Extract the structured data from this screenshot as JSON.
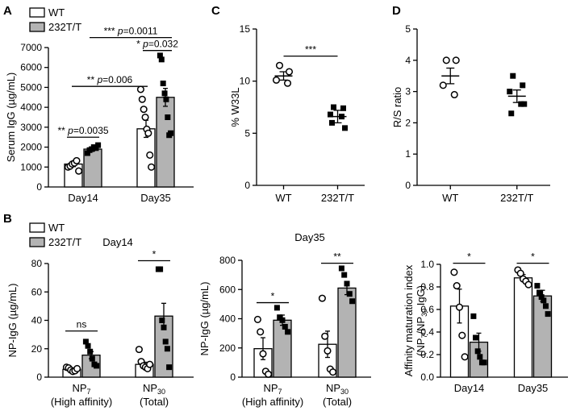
{
  "colors": {
    "wt_fill": "#ffffff",
    "mut_fill": "#b3b3b3",
    "ink": "#000000"
  },
  "panel_labels": {
    "A": "A",
    "B": "B",
    "C": "C",
    "D": "D"
  },
  "legend": {
    "wt": "WT",
    "mut": "232T/T"
  },
  "chart_data": [
    {
      "id": "A",
      "type": "bar",
      "title": "",
      "ylabel": "Serum IgG (µg/mL)",
      "ylim": [
        0,
        7000
      ],
      "yticks": [
        0,
        1000,
        2000,
        3000,
        4000,
        5000,
        6000,
        7000
      ],
      "categories": [
        "Day14",
        "Day35"
      ],
      "series": [
        {
          "name": "WT",
          "means": [
            1150,
            2920
          ],
          "sems": [
            130,
            430
          ],
          "points": [
            [
              1000,
              1050,
              1150,
              1200,
              1320,
              800
            ],
            [
              4900,
              4400,
              3900,
              3500,
              2900,
              2700,
              1600,
              1000
            ]
          ]
        },
        {
          "name": "232T/T",
          "means": [
            1900,
            4500
          ],
          "sems": [
            90,
            450
          ],
          "points": [
            [
              1700,
              1850,
              1900,
              2000,
              1950,
              2100
            ],
            [
              6600,
              6400,
              5200,
              4700,
              4400,
              3500,
              2600,
              2700
            ]
          ]
        }
      ],
      "annotations": [
        {
          "text": "** p=0.0035"
        },
        {
          "text": "** p=0.006"
        },
        {
          "text": "*** p=0.0011"
        },
        {
          "text": "* p=0.032"
        }
      ]
    },
    {
      "id": "C",
      "type": "scatter",
      "ylabel": "% W33L",
      "ylim": [
        0,
        15
      ],
      "yticks": [
        0,
        5,
        10,
        15
      ],
      "categories": [
        "WT",
        "232T/T"
      ],
      "series": [
        {
          "name": "WT",
          "mean": 10.5,
          "sem": 0.4,
          "points": [
            11.5,
            10.9,
            10.1,
            9.8
          ]
        },
        {
          "name": "232T/T",
          "mean": 6.6,
          "sem": 0.6,
          "points": [
            7.5,
            7.4,
            6.8,
            6.6,
            6.0,
            5.5
          ]
        }
      ],
      "annotations": [
        {
          "text": "***"
        }
      ]
    },
    {
      "id": "D",
      "type": "scatter",
      "ylabel": "R/S ratio",
      "ylim": [
        0,
        5
      ],
      "yticks": [
        0,
        1,
        2,
        3,
        4,
        5
      ],
      "categories": [
        "WT",
        "232T/T"
      ],
      "series": [
        {
          "name": "WT",
          "mean": 3.5,
          "sem": 0.25,
          "points": [
            4.0,
            4.0,
            3.2,
            2.9
          ]
        },
        {
          "name": "232T/T",
          "mean": 2.85,
          "sem": 0.2,
          "points": [
            3.5,
            3.2,
            3.0,
            2.6,
            2.3,
            2.6
          ]
        }
      ],
      "annotations": []
    },
    {
      "id": "B1",
      "type": "bar",
      "title": "Day14",
      "ylabel": "NP-IgG (µg/mL)",
      "ylim": [
        0,
        80
      ],
      "yticks": [
        0,
        20,
        40,
        60,
        80
      ],
      "categories": [
        {
          "line1": "NP",
          "sub": "7",
          "line2": "(High affinity)"
        },
        {
          "line1": "NP",
          "sub": "30",
          "line2": "(Total)"
        }
      ],
      "series": [
        {
          "name": "WT",
          "means": [
            5.5,
            9.0
          ],
          "sems": [
            1.0,
            1.5
          ],
          "points": [
            [
              7,
              6.5,
              5,
              4,
              4.5,
              6
            ],
            [
              19.5,
              11,
              8,
              7,
              6,
              9
            ]
          ]
        },
        {
          "name": "232T/T",
          "means": [
            15.5,
            43
          ],
          "sems": [
            2.5,
            9
          ],
          "points": [
            [
              25,
              22,
              18,
              13,
              9,
              8
            ],
            [
              76,
              76,
              40,
              35,
              25,
              20,
              7
            ]
          ]
        }
      ],
      "annotations": [
        {
          "text": "ns"
        },
        {
          "text": "*"
        }
      ]
    },
    {
      "id": "B2",
      "type": "bar",
      "title": "Day35",
      "ylabel": "NP-IgG (µg/mL)",
      "ylim": [
        0,
        800
      ],
      "yticks": [
        0,
        200,
        400,
        600,
        800
      ],
      "categories": [
        {
          "line1": "NP",
          "sub": "7",
          "line2": "(High affinity)"
        },
        {
          "line1": "NP",
          "sub": "30",
          "line2": "(Total)"
        }
      ],
      "series": [
        {
          "name": "WT",
          "means": [
            195,
            225
          ],
          "sems": [
            75,
            90
          ],
          "points": [
            [
              395,
              310,
              160,
              40,
              20
            ],
            [
              540,
              280,
              180,
              55,
              35
            ]
          ]
        },
        {
          "name": "232T/T",
          "means": [
            390,
            610
          ],
          "sems": [
            35,
            45
          ],
          "points": [
            [
              475,
              410,
              390,
              345,
              310
            ],
            [
              745,
              700,
              640,
              570,
              520
            ]
          ]
        }
      ],
      "annotations": [
        {
          "text": "*"
        },
        {
          "text": "**"
        }
      ]
    },
    {
      "id": "B3",
      "type": "bar",
      "title": "",
      "ylabel_line1": "Affinity maturation index",
      "ylabel_line2_pre": "(NP",
      "ylabel_line2_sub1": "7",
      "ylabel_line2_mid": "/NP",
      "ylabel_line2_sub2": "30",
      "ylabel_line2_post": " IgG)",
      "ylim": [
        0,
        1.0
      ],
      "yticks": [
        0.0,
        0.2,
        0.4,
        0.6,
        0.8,
        1.0
      ],
      "categories": [
        "Day14",
        "Day35"
      ],
      "series": [
        {
          "name": "WT",
          "means": [
            0.63,
            0.88
          ],
          "sems": [
            0.15,
            0.03
          ],
          "points": [
            [
              0.93,
              0.81,
              0.62,
              0.37,
              0.18
            ],
            [
              0.95,
              0.92,
              0.87,
              0.85,
              0.82
            ]
          ]
        },
        {
          "name": "232T/T",
          "means": [
            0.31,
            0.72
          ],
          "sems": [
            0.08,
            0.05
          ],
          "points": [
            [
              0.54,
              0.35,
              0.23,
              0.18,
              0.13,
              0.13
            ],
            [
              0.81,
              0.75,
              0.71,
              0.68,
              0.63,
              0.56
            ]
          ]
        }
      ],
      "annotations": [
        {
          "text": "*"
        },
        {
          "text": "*"
        }
      ]
    }
  ]
}
